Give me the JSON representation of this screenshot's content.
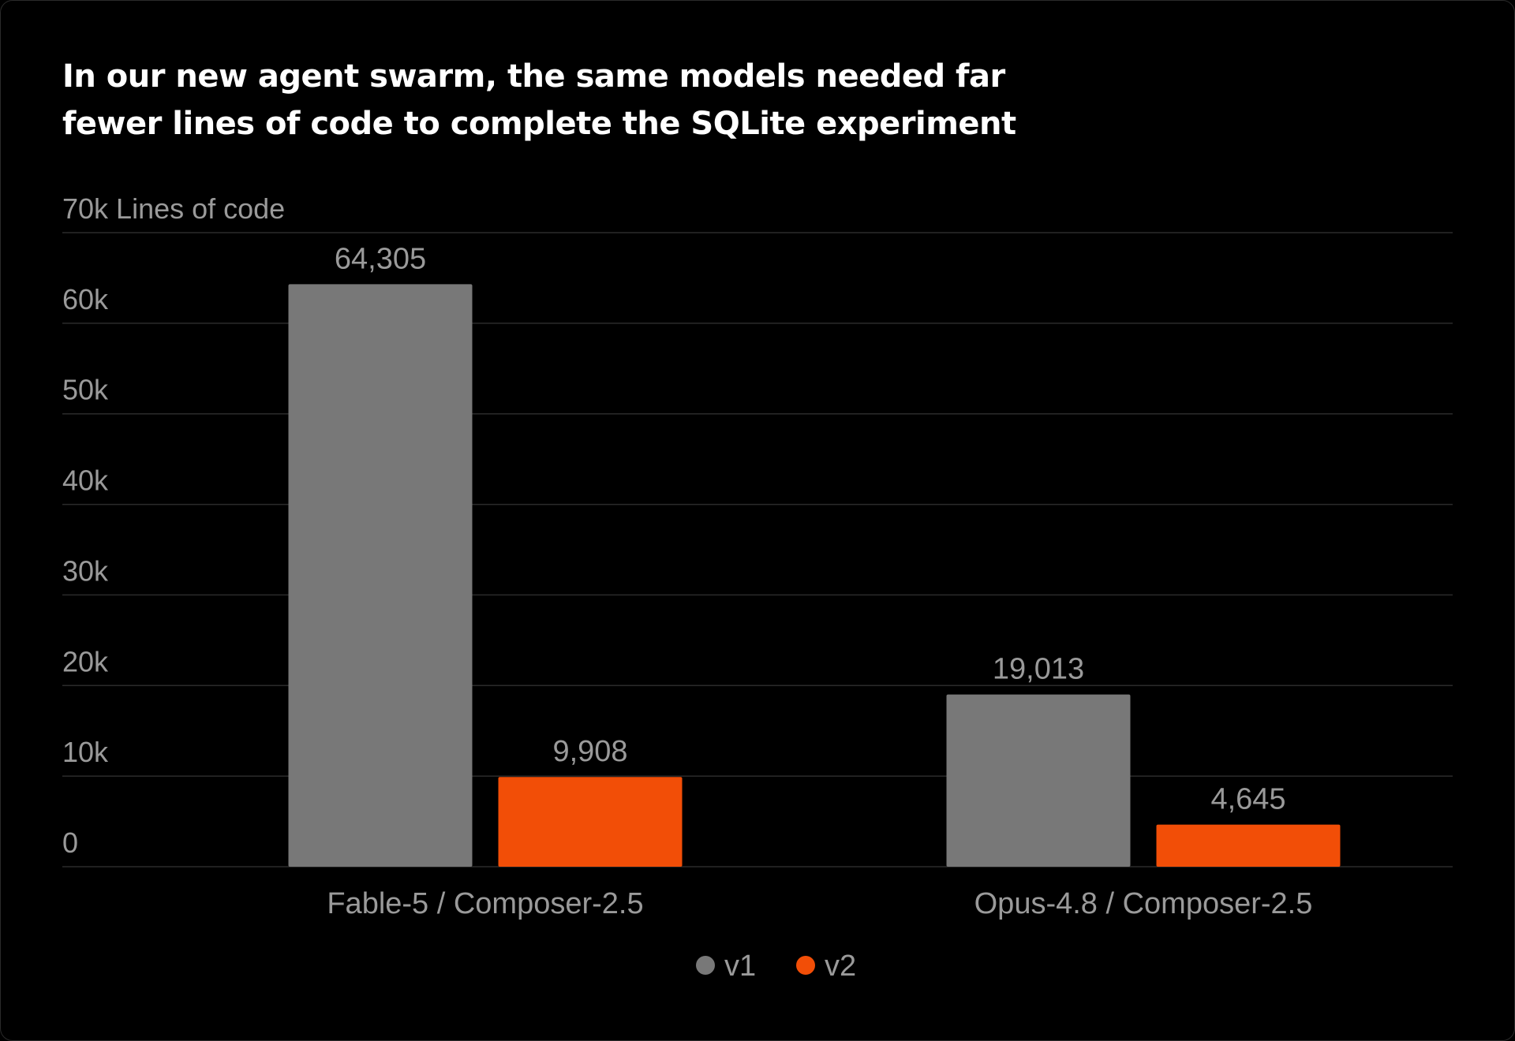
{
  "chart_data": {
    "type": "bar",
    "title": "In our new agent swarm, the same models needed far fewer lines of code to complete the SQLite experiment",
    "title_lines": [
      "In our new agent swarm, the same models needed far",
      "fewer lines of code to complete the SQLite experiment"
    ],
    "ylabel": "Lines of code",
    "xlabel": "",
    "ylim": [
      0,
      70000
    ],
    "yticks": [
      0,
      10000,
      20000,
      30000,
      40000,
      50000,
      60000,
      70000
    ],
    "ytick_labels": [
      "0",
      "10k",
      "20k",
      "30k",
      "40k",
      "50k",
      "60k",
      "70k"
    ],
    "categories": [
      "Fable-5 / Composer-2.5",
      "Opus-4.8 / Composer-2.5"
    ],
    "series": [
      {
        "name": "v1",
        "color": "#787878",
        "values": [
          64305,
          19013
        ],
        "labels": [
          "64,305",
          "19,013"
        ]
      },
      {
        "name": "v2",
        "color": "#f24e07",
        "values": [
          9908,
          4645
        ],
        "labels": [
          "9,908",
          "4,645"
        ]
      }
    ],
    "grid": true,
    "legend": "bottom-center"
  },
  "colors": {
    "background": "#000000",
    "text": "#ffffff",
    "muted_text": "#9a9a9a",
    "grid": "#2b2b2b"
  }
}
